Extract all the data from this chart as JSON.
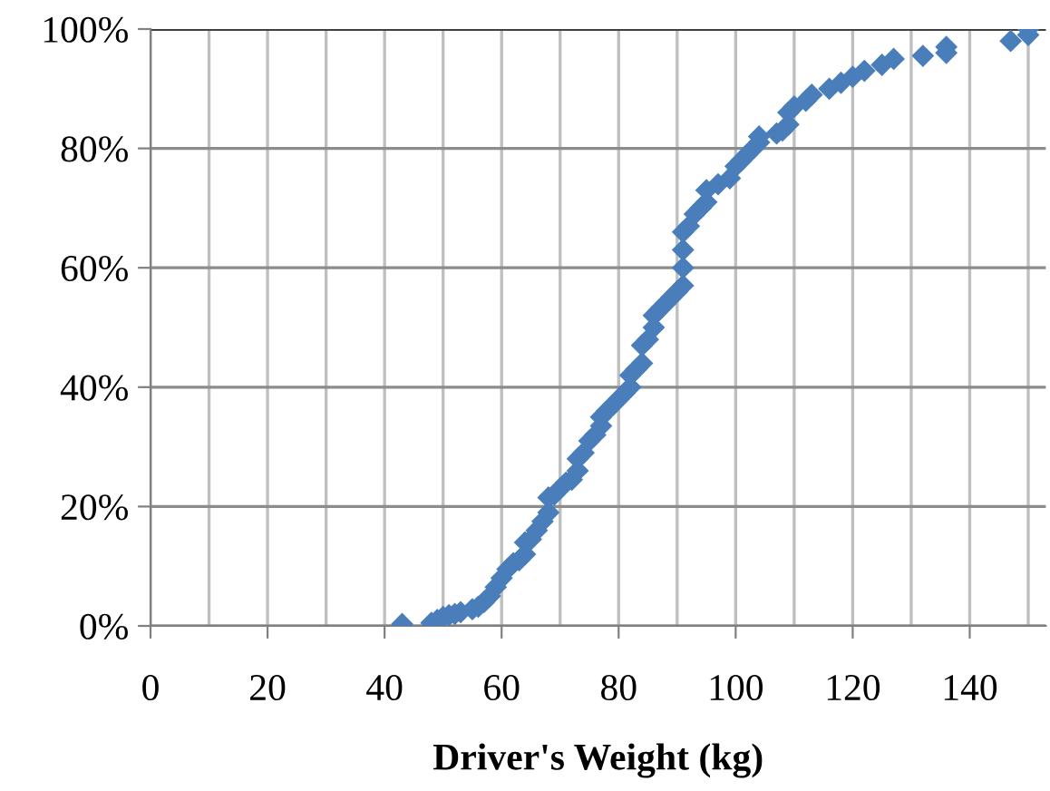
{
  "chart_data": {
    "type": "scatter",
    "xlabel": "Driver's Weight (kg)",
    "x": [
      43,
      48,
      49,
      50,
      51,
      52,
      53,
      55,
      56,
      57,
      58,
      59,
      60,
      61,
      62,
      63,
      64,
      64,
      65,
      66,
      67,
      68,
      68,
      69,
      70,
      71,
      72,
      73,
      73,
      74,
      75,
      76,
      77,
      77,
      78,
      79,
      80,
      81,
      82,
      82,
      83,
      84,
      84,
      85,
      86,
      86,
      87,
      88,
      89,
      90,
      91,
      91,
      91,
      91,
      92,
      93,
      94,
      95,
      95,
      97,
      99,
      100,
      101,
      102,
      103,
      104,
      104,
      107,
      108,
      109,
      109,
      110,
      112,
      113,
      116,
      118,
      120,
      122,
      125,
      127,
      132,
      136,
      136,
      147,
      150,
      150
    ],
    "series": [
      {
        "color": "#4a7ebb",
        "values": [
          0.3,
          0.5,
          1,
          1.5,
          1.8,
          2,
          2.3,
          2.8,
          3.2,
          4,
          5,
          6.5,
          8,
          9.5,
          10.5,
          11,
          12,
          14,
          14.5,
          16,
          17.5,
          19,
          21.5,
          22,
          23,
          24,
          24.5,
          26,
          28,
          29,
          31,
          32,
          33.5,
          35,
          36,
          37,
          38,
          39,
          40,
          42,
          43,
          44,
          47,
          48,
          50,
          52,
          53,
          54,
          55,
          56,
          57,
          60,
          63,
          66,
          67,
          69,
          70,
          71,
          73,
          74,
          75,
          77,
          78,
          79,
          80,
          81,
          82,
          82.5,
          83,
          84,
          86,
          87,
          88,
          89,
          90,
          91,
          92,
          93,
          94,
          95,
          95.5,
          96,
          97,
          98,
          99,
          100
        ]
      }
    ],
    "xlim": [
      0,
      153
    ],
    "xticks": [
      0,
      {
        "value": 10,
        "label": null
      },
      20,
      {
        "value": 30,
        "label": null
      },
      40,
      {
        "value": 50,
        "label": null
      },
      60,
      {
        "value": 70,
        "label": null
      },
      80,
      {
        "value": 90,
        "label": null
      },
      100,
      {
        "value": 110,
        "label": null
      },
      120,
      {
        "value": 130,
        "label": null
      },
      140,
      {
        "value": 150,
        "label": null
      }
    ],
    "ylim": [
      0,
      100
    ],
    "yticks": [
      {
        "value": 0,
        "label": "0%"
      },
      {
        "value": 20,
        "label": "20%"
      },
      {
        "value": 40,
        "label": "40%"
      },
      {
        "value": 60,
        "label": "60%"
      },
      {
        "value": 80,
        "label": "80%"
      },
      {
        "value": 100,
        "label": "100%"
      }
    ],
    "grid": true,
    "marker": "diamond"
  }
}
